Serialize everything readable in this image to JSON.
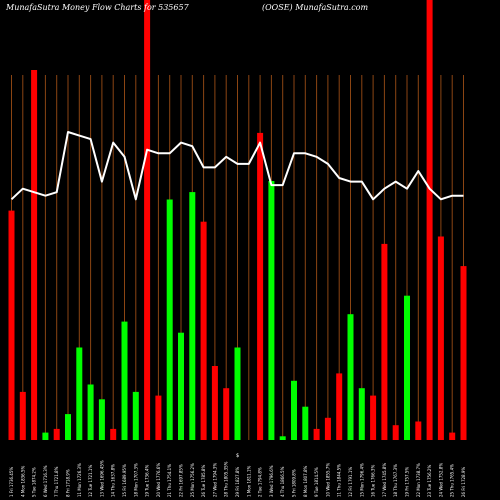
{
  "chart_data": {
    "type": "bar",
    "title": "MunafaSutra  Money Flow  Charts for 535657",
    "subtitle": "(OOSE) MunafaSutra.com",
    "xlabel": "",
    "ylabel": "",
    "axis_symbol": "$",
    "grid": true,
    "ylim": [
      0,
      100
    ],
    "line_ylim": [
      0,
      100
    ],
    "colors": {
      "background": "#000000",
      "up": "#00ff00",
      "down": "#ff0000",
      "line": "#ffffff",
      "grid": "#8b4513"
    },
    "categories": [
      "1 Fri 1736.45%",
      "4 Mon 1836.5%",
      "5 Tue 1874.2%",
      "6 Wed 1716.3%",
      "7 Thu 1721.8%",
      "8 Fri 1718.9%",
      "11 Mon 1726.3%",
      "12 Tue 1721.1%",
      "13 Wed 1696.45%",
      "14 Thu 1637.8%",
      "15 Fri 1689.95%",
      "18 Mon 1707.3%",
      "19 Tue 1736.4%",
      "20 Wed 1776.6%",
      "21 Thu 1754.1%",
      "22 Fri 1697.85%",
      "25 Mon 1756.2%",
      "26 Tue 1785.8%",
      "27 Wed 1794.3%",
      "28 Thu 1805.35%",
      "29 Fri 1827.8%",
      "1 Mon 1811.1%",
      "2 Tue 1794.8%",
      "3 Wed 1796.6%",
      "4 Thu 1866.5%",
      "5 Fri 1809.8%",
      "8 Mon 1807.8%",
      "9 Tue 1814.5%",
      "10 Wed 1855.7%",
      "11 Thu 1844.5%",
      "12 Fri 1791.1%",
      "15 Mon 1796.4%",
      "16 Tue 1766.3%",
      "17 Wed 1745.8%",
      "18 Thu 1767.3%",
      "19 Fri 1757.5%",
      "22 Mon 1738.7%",
      "23 Tue 1756.2%",
      "24 Wed 1752.8%",
      "25 Thu 1765.4%",
      "26 Fri 1728.9%"
    ],
    "series": [
      {
        "values": [
          62,
          13,
          100,
          2,
          3,
          7,
          25,
          15,
          11,
          3,
          32,
          13,
          16,
          12,
          65,
          29,
          67,
          59,
          20,
          14,
          25,
          0,
          83,
          70,
          1,
          16,
          9,
          3,
          6,
          18,
          34,
          14,
          12,
          53,
          4,
          39,
          5,
          15,
          55,
          2,
          47
        ],
        "directions": [
          "down",
          "down",
          "down",
          "up",
          "down",
          "up",
          "up",
          "up",
          "up",
          "down",
          "up",
          "up",
          "down",
          "down",
          "up",
          "up",
          "up",
          "down",
          "down",
          "down",
          "up",
          "down",
          "down",
          "up",
          "up",
          "up",
          "up",
          "down",
          "down",
          "down",
          "up",
          "up",
          "down",
          "down",
          "down",
          "up",
          "down",
          "down",
          "down",
          "down",
          "down"
        ],
        "overflow": [
          false,
          false,
          false,
          false,
          false,
          false,
          false,
          false,
          false,
          false,
          false,
          false,
          true,
          false,
          false,
          false,
          false,
          false,
          false,
          false,
          false,
          false,
          false,
          false,
          false,
          false,
          false,
          false,
          false,
          false,
          false,
          false,
          false,
          false,
          false,
          false,
          false,
          true,
          false,
          false,
          false
        ]
      },
      {
        "type": "line",
        "values": [
          68,
          71,
          70,
          69,
          70,
          87,
          86,
          85,
          73,
          84,
          80,
          68,
          82,
          81,
          81,
          84,
          83,
          77,
          77,
          80,
          78,
          78,
          84,
          72,
          72,
          81,
          81,
          80,
          78,
          74,
          73,
          73,
          68,
          71,
          73,
          71,
          76,
          71,
          68,
          69,
          69
        ]
      }
    ]
  }
}
